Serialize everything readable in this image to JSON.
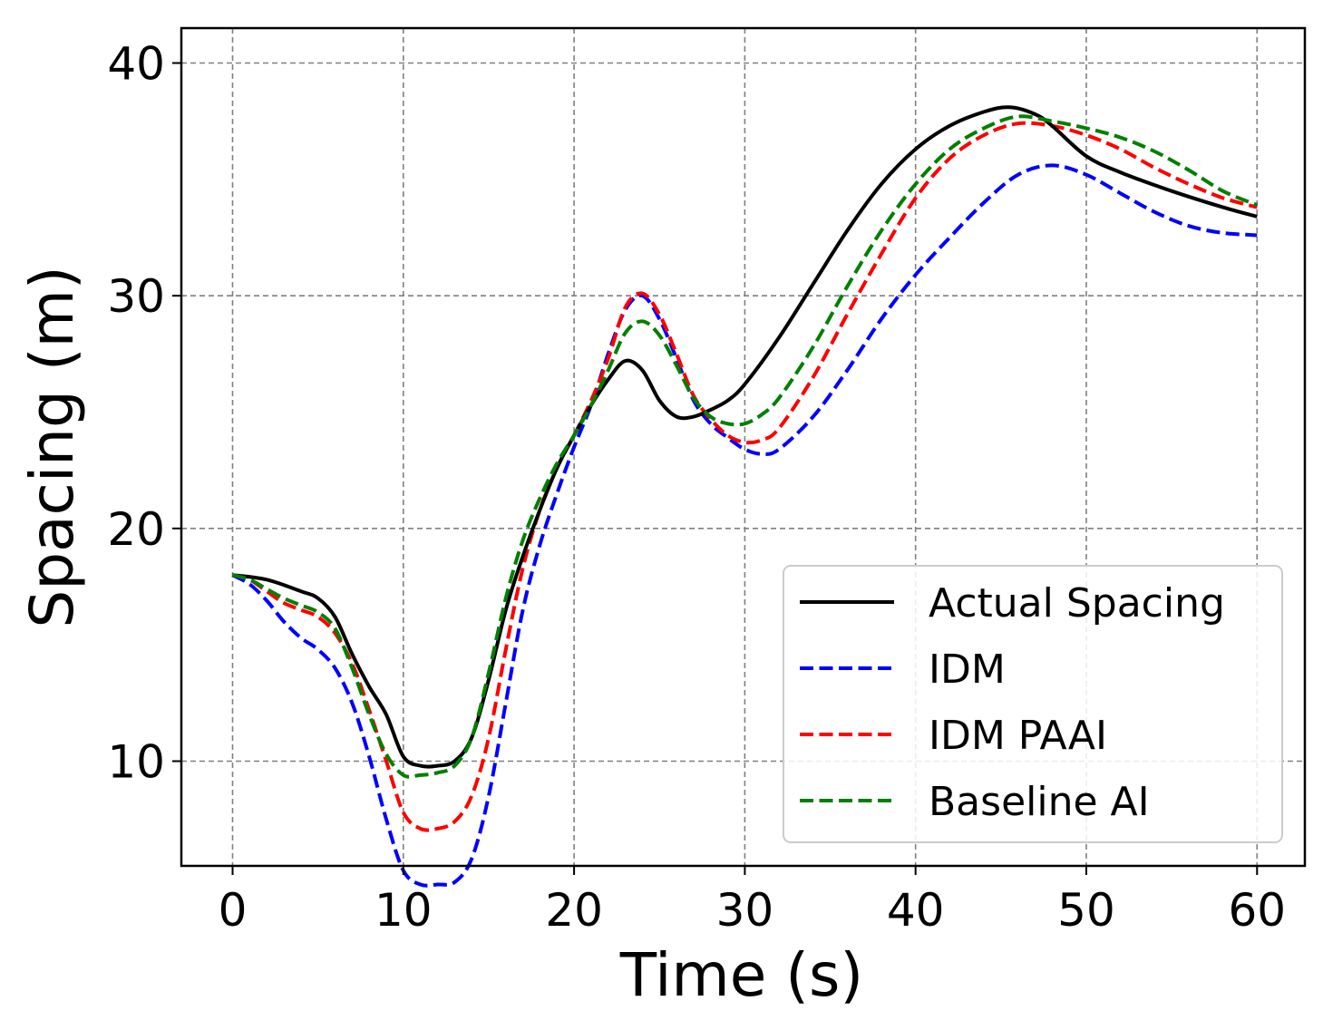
{
  "chart_data": {
    "type": "line",
    "title": "",
    "xlabel": "Time (s)",
    "ylabel": "Spacing (m)",
    "xlim": [
      -3,
      62.8
    ],
    "ylim": [
      5.5,
      41.5
    ],
    "xticks": [
      0,
      10,
      20,
      30,
      40,
      50,
      60
    ],
    "yticks": [
      10,
      20,
      30,
      40
    ],
    "grid": true,
    "legend_position": "lower-right",
    "series": [
      {
        "name": "Actual Spacing",
        "color": "#000000",
        "dash": "solid",
        "x": [
          0,
          2,
          4,
          5,
          6,
          7,
          8,
          9,
          10,
          11,
          12,
          13,
          14,
          15,
          16,
          17,
          18,
          19,
          20,
          21,
          22,
          23,
          24,
          25,
          26,
          27,
          28,
          29,
          30,
          32,
          34,
          36,
          38,
          40,
          42,
          44,
          45.5,
          47,
          48,
          50,
          52,
          55,
          58,
          60
        ],
        "y": [
          18.0,
          17.8,
          17.3,
          17.0,
          16.2,
          14.6,
          13.2,
          12.0,
          10.2,
          9.8,
          9.8,
          10.0,
          11.0,
          13.5,
          16.5,
          18.8,
          20.8,
          22.6,
          24.0,
          25.3,
          26.4,
          27.2,
          26.8,
          25.5,
          24.8,
          24.8,
          25.1,
          25.5,
          26.2,
          28.2,
          30.5,
          32.8,
          34.8,
          36.3,
          37.3,
          37.9,
          38.1,
          37.8,
          37.3,
          36.0,
          35.3,
          34.5,
          33.8,
          33.4
        ]
      },
      {
        "name": "IDM",
        "color": "#0000ff",
        "dash": "dashed",
        "x": [
          0,
          1,
          2,
          3,
          4,
          5,
          6,
          7,
          8,
          9,
          10,
          11,
          12,
          13,
          14,
          15,
          16,
          17,
          18,
          19,
          20,
          21,
          22,
          23,
          24,
          25,
          26,
          27,
          28,
          29,
          30,
          31,
          32,
          34,
          36,
          38,
          40,
          42,
          44,
          46,
          48,
          50,
          52,
          54,
          56,
          58,
          60
        ],
        "y": [
          18.0,
          17.6,
          16.9,
          16.0,
          15.3,
          14.8,
          14.0,
          12.5,
          10.2,
          7.5,
          5.3,
          4.7,
          4.7,
          4.8,
          5.8,
          8.5,
          12.5,
          16.5,
          19.3,
          21.5,
          23.5,
          25.3,
          27.5,
          29.4,
          30.0,
          29.0,
          27.3,
          25.5,
          24.5,
          23.9,
          23.4,
          23.2,
          23.4,
          24.8,
          26.8,
          29.0,
          30.9,
          32.5,
          34.0,
          35.2,
          35.6,
          35.2,
          34.4,
          33.6,
          33.0,
          32.7,
          32.6
        ]
      },
      {
        "name": "IDM PAAI",
        "color": "#ff0000",
        "dash": "dashed",
        "x": [
          0,
          1,
          2,
          3,
          4,
          5,
          6,
          7,
          8,
          9,
          10,
          11,
          12,
          13,
          14,
          15,
          16,
          17,
          18,
          19,
          20,
          21,
          22,
          23,
          24,
          25,
          26,
          27,
          28,
          29,
          30,
          31,
          32,
          34,
          36,
          38,
          40,
          42,
          44,
          46,
          48,
          50,
          52,
          54,
          56,
          58,
          60
        ],
        "y": [
          18.0,
          17.8,
          17.3,
          16.8,
          16.5,
          16.2,
          15.5,
          14.2,
          12.2,
          10.0,
          7.8,
          7.1,
          7.1,
          7.4,
          8.5,
          11.0,
          14.8,
          18.3,
          20.8,
          22.6,
          24.0,
          25.5,
          27.3,
          29.5,
          30.1,
          29.2,
          27.5,
          25.7,
          24.7,
          24.0,
          23.7,
          23.8,
          24.3,
          26.5,
          29.2,
          31.8,
          34.2,
          35.9,
          36.9,
          37.4,
          37.3,
          36.9,
          36.3,
          35.5,
          34.8,
          34.2,
          33.8
        ]
      },
      {
        "name": "Baseline AI",
        "color": "#008000",
        "dash": "dashed",
        "x": [
          0,
          1,
          2,
          3,
          4,
          5,
          6,
          7,
          8,
          9,
          10,
          11,
          12,
          13,
          14,
          15,
          16,
          17,
          18,
          19,
          20,
          21,
          22,
          23,
          24,
          25,
          26,
          27,
          28,
          29,
          30,
          31,
          32,
          34,
          36,
          38,
          40,
          42,
          44,
          46,
          48,
          50,
          52,
          54,
          56,
          58,
          60
        ],
        "y": [
          18.0,
          17.8,
          17.4,
          17.0,
          16.7,
          16.4,
          15.7,
          14.0,
          12.0,
          10.3,
          9.4,
          9.4,
          9.5,
          9.8,
          11.0,
          13.8,
          17.0,
          19.5,
          21.3,
          22.8,
          24.0,
          25.3,
          26.8,
          28.4,
          28.9,
          28.3,
          27.0,
          25.6,
          24.8,
          24.5,
          24.5,
          24.9,
          25.6,
          27.8,
          30.4,
          32.8,
          34.8,
          36.3,
          37.2,
          37.7,
          37.5,
          37.2,
          36.8,
          36.2,
          35.4,
          34.5,
          33.9
        ]
      }
    ]
  }
}
